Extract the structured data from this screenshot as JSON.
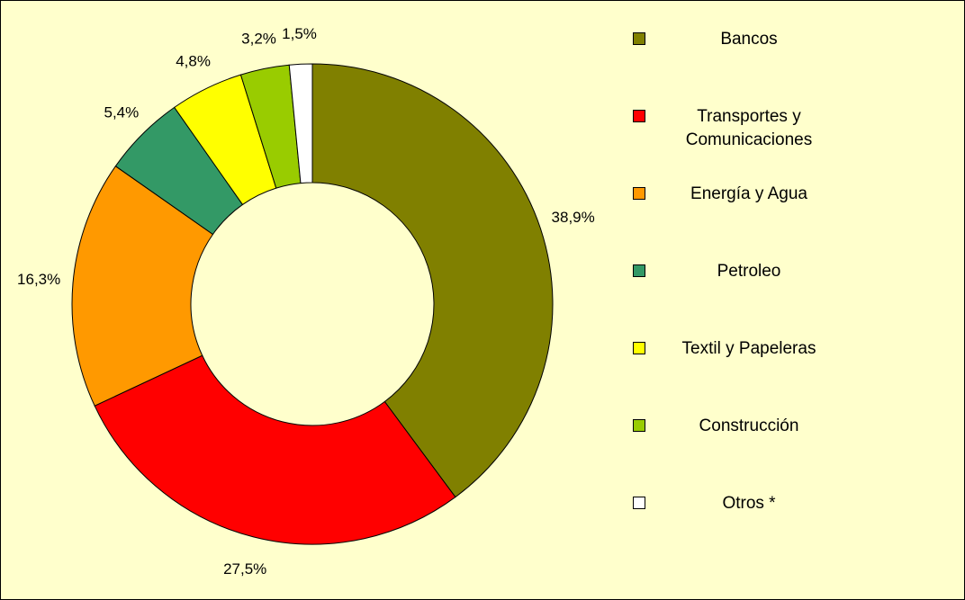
{
  "chart_data": {
    "type": "donut",
    "categories": [
      "Bancos",
      "Transportes y Comunicaciones",
      "Energía y Agua",
      "Petroleo",
      "Textil y Papeleras",
      "Construcción",
      "Otros *"
    ],
    "values": [
      38.9,
      27.5,
      16.3,
      5.4,
      4.8,
      3.2,
      1.5
    ],
    "value_labels": [
      "38,9%",
      "27,5%",
      "16,3%",
      "5,4%",
      "4,8%",
      "3,2%",
      "1,5%"
    ],
    "colors": [
      "#808000",
      "#ff0000",
      "#ff9900",
      "#339966",
      "#ffff00",
      "#99cc00",
      "#ffffff"
    ],
    "legend": "right"
  }
}
